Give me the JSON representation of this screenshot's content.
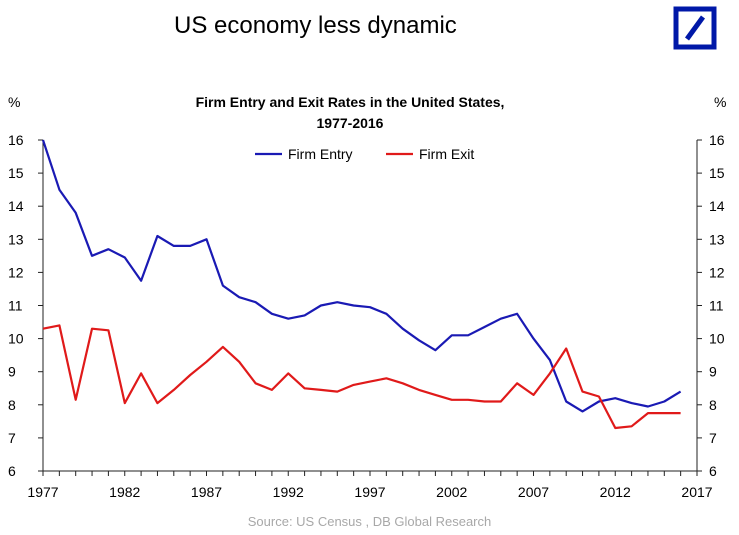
{
  "page_title": "US economy less dynamic",
  "logo": {
    "name": "deutsche-bank-logo",
    "color": "#0018a8"
  },
  "source": "Source: US Census , DB Global Research",
  "chart_data": {
    "type": "line",
    "title_lines": [
      "Firm Entry and Exit Rates in the United States,",
      "1977-2016"
    ],
    "y_unit_left": "%",
    "y_unit_right": "%",
    "xlim": [
      1977,
      2017
    ],
    "ylim": [
      6,
      16
    ],
    "x_ticks": [
      "1977",
      "1982",
      "1987",
      "1992",
      "1997",
      "2002",
      "2007",
      "2012",
      "2017"
    ],
    "y_ticks": [
      "16",
      "15",
      "14",
      "13",
      "12",
      "11",
      "10",
      "9",
      "8",
      "7",
      "6"
    ],
    "grid": false,
    "legend_position": "top-center",
    "x": [
      1977,
      1978,
      1979,
      1980,
      1981,
      1982,
      1983,
      1984,
      1985,
      1986,
      1987,
      1988,
      1989,
      1990,
      1991,
      1992,
      1993,
      1994,
      1995,
      1996,
      1997,
      1998,
      1999,
      2000,
      2001,
      2002,
      2003,
      2004,
      2005,
      2006,
      2007,
      2008,
      2009,
      2010,
      2011,
      2012,
      2013,
      2014,
      2015,
      2016
    ],
    "series": [
      {
        "name": "Firm Entry",
        "color": "#1a1ab4",
        "values": [
          16.0,
          14.5,
          13.8,
          12.5,
          12.7,
          12.45,
          11.75,
          13.1,
          12.8,
          12.8,
          13.0,
          11.6,
          11.25,
          11.1,
          10.75,
          10.6,
          10.7,
          11.0,
          11.1,
          11.0,
          10.95,
          10.75,
          10.3,
          9.95,
          9.65,
          10.1,
          10.1,
          10.35,
          10.6,
          10.75,
          10.0,
          9.35,
          8.1,
          7.8,
          8.1,
          8.2,
          8.05,
          7.95,
          8.1,
          8.4
        ]
      },
      {
        "name": "Firm Exit",
        "color": "#e01a1a",
        "values": [
          10.3,
          10.4,
          8.15,
          10.3,
          10.25,
          8.05,
          8.95,
          8.05,
          8.45,
          8.9,
          9.3,
          9.75,
          9.3,
          8.65,
          8.45,
          8.95,
          8.5,
          8.45,
          8.4,
          8.6,
          8.7,
          8.8,
          8.65,
          8.45,
          8.3,
          8.15,
          8.15,
          8.1,
          8.1,
          8.65,
          8.3,
          8.95,
          9.7,
          8.4,
          8.25,
          7.3,
          7.35,
          7.75,
          7.75,
          7.75
        ]
      }
    ]
  }
}
